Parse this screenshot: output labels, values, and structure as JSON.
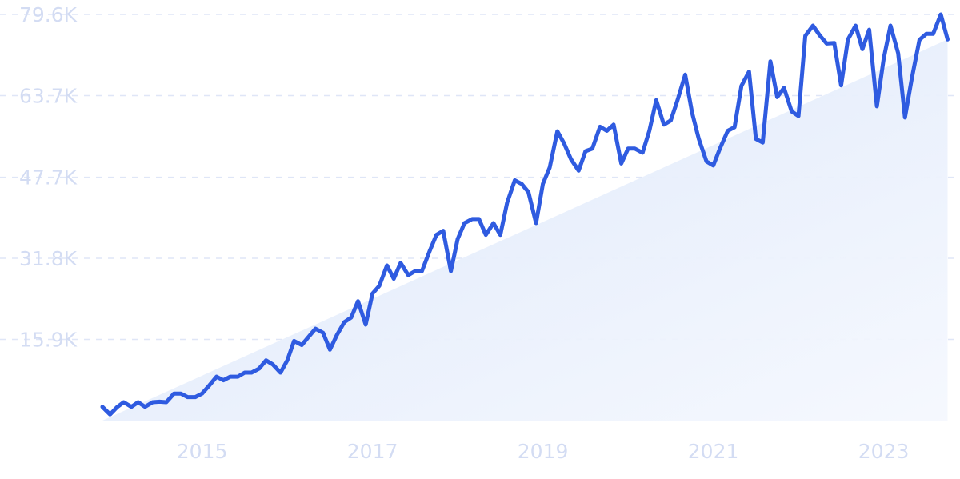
{
  "chart_data": {
    "type": "line",
    "title": "",
    "xlabel": "",
    "ylabel": "",
    "grid": true,
    "legend": "none",
    "xlim": [
      2013.83,
      2023.83
    ],
    "ylim": [
      0,
      79600
    ],
    "y_ticks": [
      15900,
      31800,
      47700,
      63700,
      79600
    ],
    "y_tick_labels": [
      "15.9K",
      "31.8K",
      "47.7K",
      "63.7K",
      "79.6K"
    ],
    "x_ticks": [
      2015,
      2017,
      2019,
      2021,
      2023
    ],
    "x_tick_labels": [
      "2015",
      "2017",
      "2019",
      "2021",
      "2023"
    ],
    "colors": {
      "line": "#2f5be0",
      "area_top": "#dbe6fa",
      "area_bottom": "#f5f8fe",
      "grid": "#dfe6f7",
      "tick_label": "#d3dcf3"
    },
    "series": [
      {
        "values": [
          [
            2013.83,
            2700
          ],
          [
            2013.92,
            1200
          ],
          [
            2014.0,
            2600
          ],
          [
            2014.08,
            3600
          ],
          [
            2014.17,
            2700
          ],
          [
            2014.25,
            3600
          ],
          [
            2014.33,
            2700
          ],
          [
            2014.42,
            3600
          ],
          [
            2014.5,
            3700
          ],
          [
            2014.58,
            3600
          ],
          [
            2014.67,
            5300
          ],
          [
            2014.75,
            5300
          ],
          [
            2014.83,
            4600
          ],
          [
            2014.92,
            4600
          ],
          [
            2015.0,
            5300
          ],
          [
            2015.08,
            6800
          ],
          [
            2015.17,
            8600
          ],
          [
            2015.25,
            7900
          ],
          [
            2015.33,
            8600
          ],
          [
            2015.42,
            8600
          ],
          [
            2015.5,
            9400
          ],
          [
            2015.58,
            9400
          ],
          [
            2015.67,
            10200
          ],
          [
            2015.75,
            11800
          ],
          [
            2015.83,
            11000
          ],
          [
            2015.92,
            9400
          ],
          [
            2016.0,
            11800
          ],
          [
            2016.08,
            15600
          ],
          [
            2016.17,
            14800
          ],
          [
            2016.25,
            16400
          ],
          [
            2016.33,
            18000
          ],
          [
            2016.42,
            17200
          ],
          [
            2016.5,
            13900
          ],
          [
            2016.58,
            16700
          ],
          [
            2016.67,
            19300
          ],
          [
            2016.75,
            20200
          ],
          [
            2016.83,
            23400
          ],
          [
            2016.92,
            18800
          ],
          [
            2017.0,
            24900
          ],
          [
            2017.08,
            26400
          ],
          [
            2017.17,
            30400
          ],
          [
            2017.25,
            27800
          ],
          [
            2017.33,
            30900
          ],
          [
            2017.42,
            28500
          ],
          [
            2017.5,
            29300
          ],
          [
            2017.58,
            29300
          ],
          [
            2017.67,
            33200
          ],
          [
            2017.75,
            36400
          ],
          [
            2017.83,
            37200
          ],
          [
            2017.92,
            29300
          ],
          [
            2018.0,
            35600
          ],
          [
            2018.08,
            38700
          ],
          [
            2018.17,
            39500
          ],
          [
            2018.25,
            39500
          ],
          [
            2018.33,
            36400
          ],
          [
            2018.42,
            38700
          ],
          [
            2018.5,
            36400
          ],
          [
            2018.58,
            42700
          ],
          [
            2018.67,
            47100
          ],
          [
            2018.75,
            46400
          ],
          [
            2018.83,
            44800
          ],
          [
            2018.92,
            38700
          ],
          [
            2019.0,
            46400
          ],
          [
            2019.08,
            49600
          ],
          [
            2019.17,
            56700
          ],
          [
            2019.25,
            54300
          ],
          [
            2019.33,
            51200
          ],
          [
            2019.42,
            49000
          ],
          [
            2019.5,
            52800
          ],
          [
            2019.58,
            53300
          ],
          [
            2019.67,
            57600
          ],
          [
            2019.75,
            56800
          ],
          [
            2019.83,
            58000
          ],
          [
            2019.92,
            50400
          ],
          [
            2020.0,
            53300
          ],
          [
            2020.08,
            53300
          ],
          [
            2020.17,
            52500
          ],
          [
            2020.25,
            56800
          ],
          [
            2020.33,
            62800
          ],
          [
            2020.42,
            58000
          ],
          [
            2020.5,
            58800
          ],
          [
            2020.58,
            62800
          ],
          [
            2020.67,
            67800
          ],
          [
            2020.75,
            60400
          ],
          [
            2020.83,
            55200
          ],
          [
            2020.92,
            50800
          ],
          [
            2021.0,
            50000
          ],
          [
            2021.08,
            53400
          ],
          [
            2021.17,
            56800
          ],
          [
            2021.25,
            57500
          ],
          [
            2021.33,
            65600
          ],
          [
            2021.42,
            68400
          ],
          [
            2021.5,
            55200
          ],
          [
            2021.58,
            54500
          ],
          [
            2021.67,
            70400
          ],
          [
            2021.75,
            63400
          ],
          [
            2021.83,
            65200
          ],
          [
            2021.92,
            60600
          ],
          [
            2022.0,
            59700
          ],
          [
            2022.08,
            75400
          ],
          [
            2022.17,
            77400
          ],
          [
            2022.25,
            75500
          ],
          [
            2022.33,
            73900
          ],
          [
            2022.42,
            74000
          ],
          [
            2022.5,
            65700
          ],
          [
            2022.58,
            74700
          ],
          [
            2022.67,
            77400
          ],
          [
            2022.75,
            72800
          ],
          [
            2022.83,
            76600
          ],
          [
            2022.92,
            61600
          ],
          [
            2023.0,
            70900
          ],
          [
            2023.08,
            77400
          ],
          [
            2023.17,
            72000
          ],
          [
            2023.25,
            59400
          ],
          [
            2023.33,
            67100
          ],
          [
            2023.42,
            74600
          ],
          [
            2023.5,
            75800
          ],
          [
            2023.58,
            75800
          ],
          [
            2023.67,
            79600
          ],
          [
            2023.75,
            74700
          ]
        ]
      }
    ]
  }
}
